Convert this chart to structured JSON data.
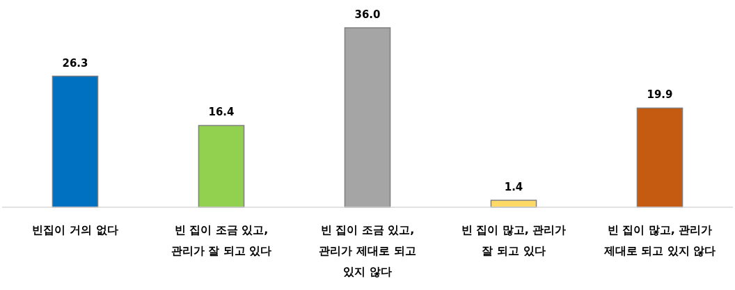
{
  "chart_data": {
    "type": "bar",
    "categories": [
      "빈집이 거의 없다",
      "빈 집이 조금 있고,\n관리가 잘 되고 있다",
      "빈 집이 조금 있고,\n관리가 제대로 되고\n있지 않다",
      "빈 집이 많고, 관리가\n잘 되고 있다",
      "빈 집이 많고, 관리가\n제대로 되고 있지 않다"
    ],
    "values": [
      26.3,
      16.4,
      36.0,
      1.4,
      19.9
    ],
    "value_labels": [
      "26.3",
      "16.4",
      "36.0",
      "1.4",
      "19.9"
    ],
    "colors": [
      "#0070c0",
      "#92d050",
      "#a5a5a5",
      "#ffd966",
      "#c55a11"
    ]
  }
}
